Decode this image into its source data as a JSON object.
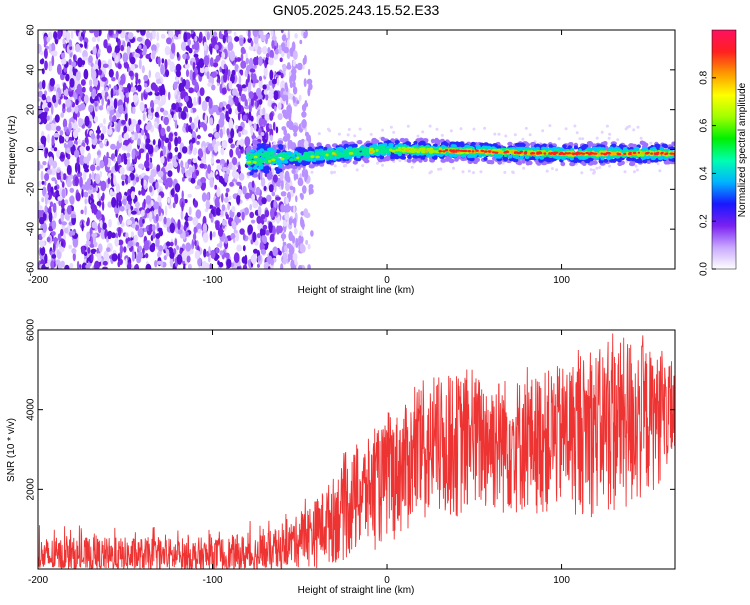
{
  "title": "GN05.2025.243.15.52.E33",
  "chart_data": [
    {
      "type": "heatmap",
      "name": "spectrogram",
      "xlabel": "Height of straight line (km)",
      "ylabel": "Frequency (Hz)",
      "xlim": [
        -200,
        165
      ],
      "ylim": [
        -60,
        60
      ],
      "xticks": [
        -200,
        -100,
        0,
        100
      ],
      "yticks": [
        -60,
        -40,
        -20,
        0,
        20,
        40,
        60
      ],
      "noise_region_km": [
        -200,
        -43
      ],
      "signal_region_km": [
        -80,
        165
      ],
      "signal_center_hz": [
        {
          "x": -80,
          "y": -5
        },
        {
          "x": -40,
          "y": -3
        },
        {
          "x": 0,
          "y": 0
        },
        {
          "x": 100,
          "y": -2
        },
        {
          "x": 165,
          "y": -2
        }
      ],
      "colorbar": {
        "label": "Normalized spectral amplitude",
        "range": [
          0,
          1
        ],
        "ticks": [
          "0.0",
          "0.2",
          "0.4",
          "0.6",
          "0.8"
        ],
        "colors": [
          "#ffffff",
          "#c8a8ff",
          "#7a20f0",
          "#1818ff",
          "#00b4ff",
          "#00ffb0",
          "#00f000",
          "#a0ff00",
          "#ffff00",
          "#ff9900",
          "#ff2020",
          "#ff1060"
        ]
      }
    },
    {
      "type": "line",
      "name": "snr",
      "xlabel": "Height of straight line (km)",
      "ylabel": "SNR (10 * v/v)",
      "xlim": [
        -200,
        165
      ],
      "ylim": [
        0,
        6000
      ],
      "xticks": [
        -200,
        -100,
        0,
        100
      ],
      "yticks": [
        2000,
        4000,
        6000
      ],
      "color": "#ee3333",
      "envelope": [
        {
          "x": -200,
          "low": 0,
          "high": 800
        },
        {
          "x": -100,
          "low": 0,
          "high": 800
        },
        {
          "x": -60,
          "low": 0,
          "high": 1000
        },
        {
          "x": -40,
          "low": 0,
          "high": 1800
        },
        {
          "x": -20,
          "low": 200,
          "high": 2900
        },
        {
          "x": 0,
          "low": 600,
          "high": 3700
        },
        {
          "x": 20,
          "low": 1000,
          "high": 4500
        },
        {
          "x": 40,
          "low": 1200,
          "high": 4900
        },
        {
          "x": 80,
          "low": 1300,
          "high": 4800
        },
        {
          "x": 110,
          "low": 1300,
          "high": 5300
        },
        {
          "x": 140,
          "low": 1200,
          "high": 5900
        },
        {
          "x": 165,
          "low": 2600,
          "high": 5000
        }
      ]
    }
  ]
}
